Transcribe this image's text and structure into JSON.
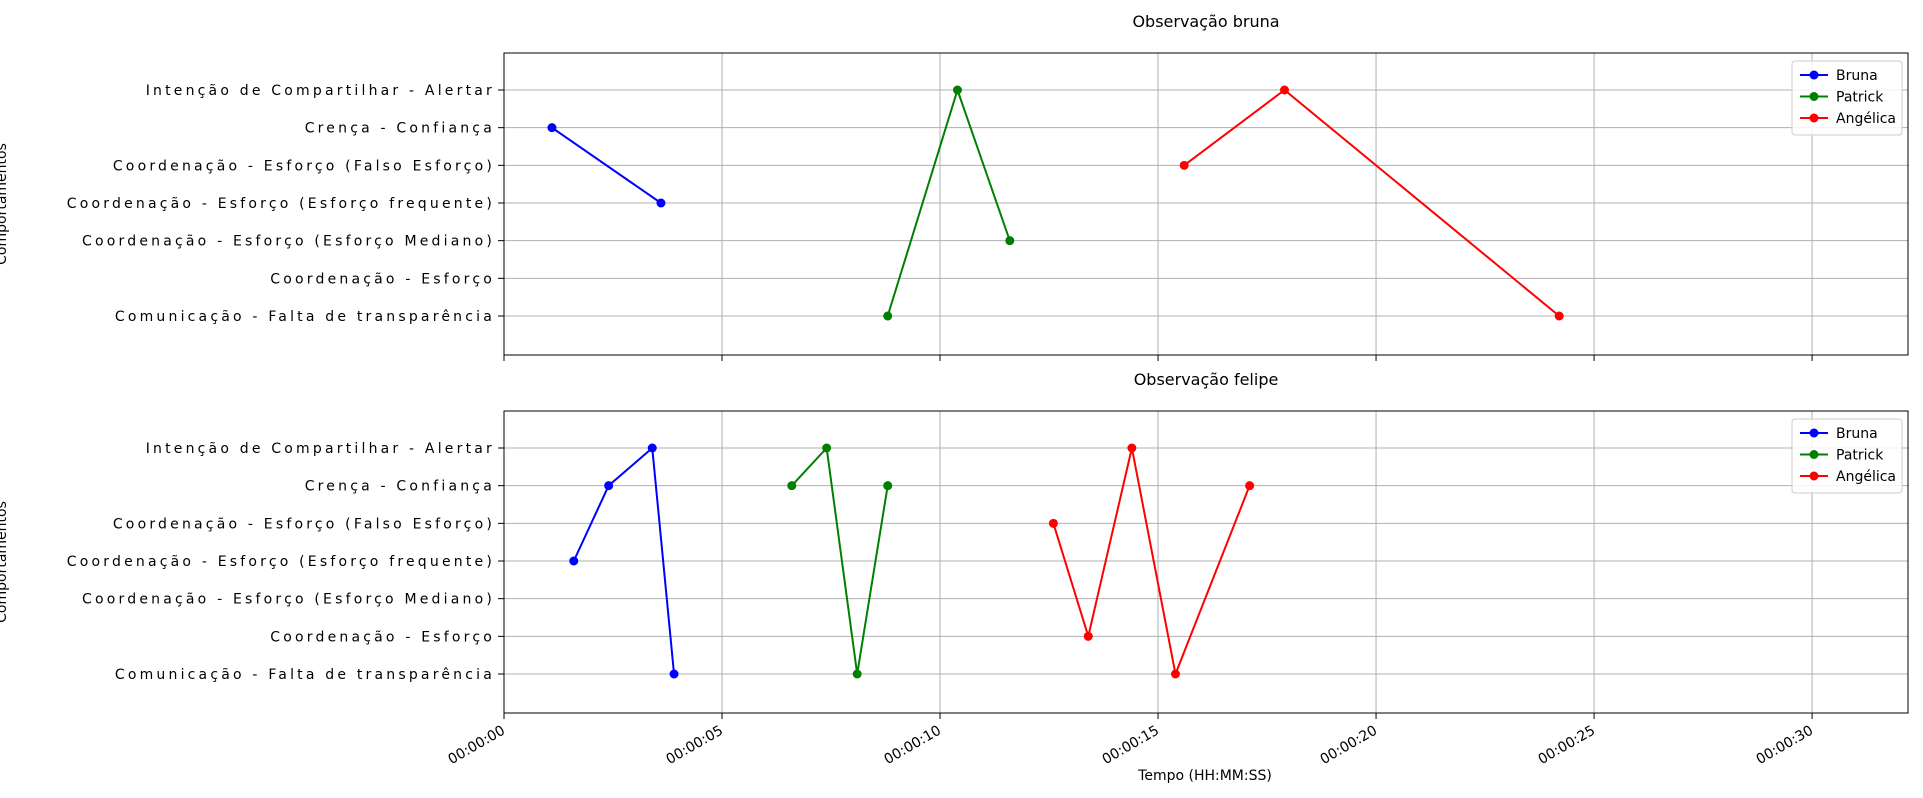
{
  "chart_data": {
    "shared": {
      "type": "line",
      "xlabel": "Tempo (HH:MM:SS)",
      "ylabel": "Comportamentos",
      "x_unit": "seconds",
      "xlim": [
        0,
        32.2
      ],
      "x_ticks": [
        {
          "value": 0,
          "label": "00:00:00"
        },
        {
          "value": 5,
          "label": "00:00:05"
        },
        {
          "value": 10,
          "label": "00:00:10"
        },
        {
          "value": 15,
          "label": "00:00:15"
        },
        {
          "value": 20,
          "label": "00:00:20"
        },
        {
          "value": 25,
          "label": "00:00:25"
        },
        {
          "value": 30,
          "label": "00:00:30"
        }
      ],
      "y_categories": [
        "Comunicação - Falta de transparência",
        "Coordenação - Esforço",
        "Coordenação - Esforço (Esforço Mediano)",
        "Coordenação - Esforço (Esforço frequente)",
        "Coordenação - Esforço (Falso Esforço)",
        "Crença - Confiança",
        "Intenção de Compartilhar - Alertar"
      ],
      "grid": true,
      "legend_placement": "top-right",
      "series_colors": {
        "Bruna": "#0000ff",
        "Patrick": "#008000",
        "Angélica": "#ff0000"
      }
    },
    "panels": [
      {
        "title": "Observação bruna",
        "series": [
          {
            "name": "Bruna",
            "color": "#0000ff",
            "points": [
              {
                "x": 1.1,
                "y": "Crença - Confiança"
              },
              {
                "x": 3.6,
                "y": "Coordenação - Esforço (Esforço frequente)"
              }
            ]
          },
          {
            "name": "Patrick",
            "color": "#008000",
            "points": [
              {
                "x": 8.8,
                "y": "Comunicação - Falta de transparência"
              },
              {
                "x": 10.4,
                "y": "Intenção de Compartilhar - Alertar"
              },
              {
                "x": 11.6,
                "y": "Coordenação - Esforço (Esforço Mediano)"
              }
            ]
          },
          {
            "name": "Angélica",
            "color": "#ff0000",
            "points": [
              {
                "x": 15.6,
                "y": "Coordenação - Esforço (Falso Esforço)"
              },
              {
                "x": 17.9,
                "y": "Intenção de Compartilhar - Alertar"
              },
              {
                "x": 24.2,
                "y": "Comunicação - Falta de transparência"
              }
            ]
          }
        ]
      },
      {
        "title": "Observação felipe",
        "series": [
          {
            "name": "Bruna",
            "color": "#0000ff",
            "points": [
              {
                "x": 1.6,
                "y": "Coordenação - Esforço (Esforço frequente)"
              },
              {
                "x": 2.4,
                "y": "Crença - Confiança"
              },
              {
                "x": 3.4,
                "y": "Intenção de Compartilhar - Alertar"
              },
              {
                "x": 3.9,
                "y": "Comunicação - Falta de transparência"
              }
            ]
          },
          {
            "name": "Patrick",
            "color": "#008000",
            "points": [
              {
                "x": 6.6,
                "y": "Crença - Confiança"
              },
              {
                "x": 7.4,
                "y": "Intenção de Compartilhar - Alertar"
              },
              {
                "x": 8.1,
                "y": "Comunicação - Falta de transparência"
              },
              {
                "x": 8.8,
                "y": "Crença - Confiança"
              }
            ]
          },
          {
            "name": "Angélica",
            "color": "#ff0000",
            "points": [
              {
                "x": 12.6,
                "y": "Coordenação - Esforço (Falso Esforço)"
              },
              {
                "x": 13.4,
                "y": "Coordenação - Esforço"
              },
              {
                "x": 14.4,
                "y": "Intenção de Compartilhar - Alertar"
              },
              {
                "x": 15.4,
                "y": "Comunicação - Falta de transparência"
              },
              {
                "x": 17.1,
                "y": "Crença - Confiança"
              }
            ]
          }
        ]
      }
    ]
  }
}
